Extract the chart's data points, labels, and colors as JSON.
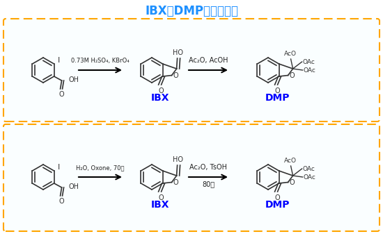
{
  "title": "IBX和DMP的合成方法",
  "title_color": "#1E90FF",
  "title_fontsize": 12,
  "bg_color": "#FFFFFF",
  "box_color": "#FFA500",
  "label_color": "#0000FF",
  "struct_color": "#333333",
  "row1_reagent1": "0.73M H₂SO₄, KBrO₄",
  "row1_reagent2": "Ac₂O, AcOH",
  "row2_reagent1": "H₂O, Oxone, 70度",
  "row2_reagent2_line1": "Ac₂O, TsOH",
  "row2_reagent2_line2": "80度",
  "ibx_label": "IBX",
  "dmp_label": "DMP"
}
